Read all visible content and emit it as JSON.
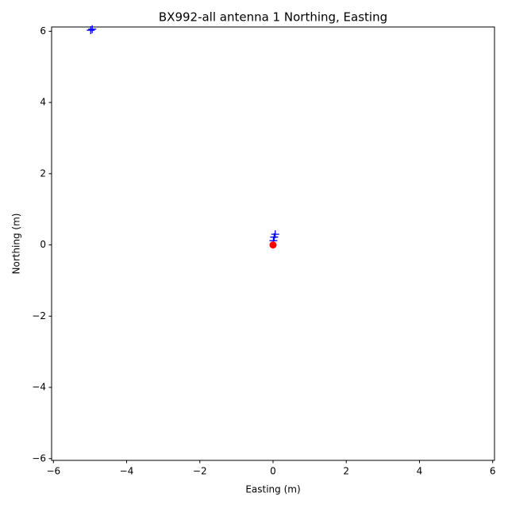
{
  "chart_data": {
    "type": "scatter",
    "title": "BX992-all antenna 1 Northing, Easting",
    "x_label": "Easting (m)",
    "y_label": "Northing (m)",
    "xlim": [
      -6.05,
      6.05
    ],
    "ylim": [
      -6.05,
      6.12
    ],
    "xticks": [
      {
        "value": -6,
        "label": "−6"
      },
      {
        "value": -4,
        "label": "−4"
      },
      {
        "value": -2,
        "label": "−2"
      },
      0,
      2,
      4,
      6
    ],
    "yticks": [
      {
        "value": -6,
        "label": "−6"
      },
      {
        "value": -4,
        "label": "−4"
      },
      {
        "value": -2,
        "label": "−2"
      },
      0,
      2,
      4,
      6
    ],
    "series": [
      {
        "color": "#0000ff",
        "marker": "+",
        "x": [
          -4.98,
          -4.94,
          0.06,
          0.03,
          0.01
        ],
        "values": [
          6.03,
          6.06,
          0.3,
          0.22,
          0.12
        ]
      },
      {
        "color": "#ff0000",
        "marker": "o",
        "x": [
          0
        ],
        "values": [
          0
        ]
      }
    ]
  }
}
